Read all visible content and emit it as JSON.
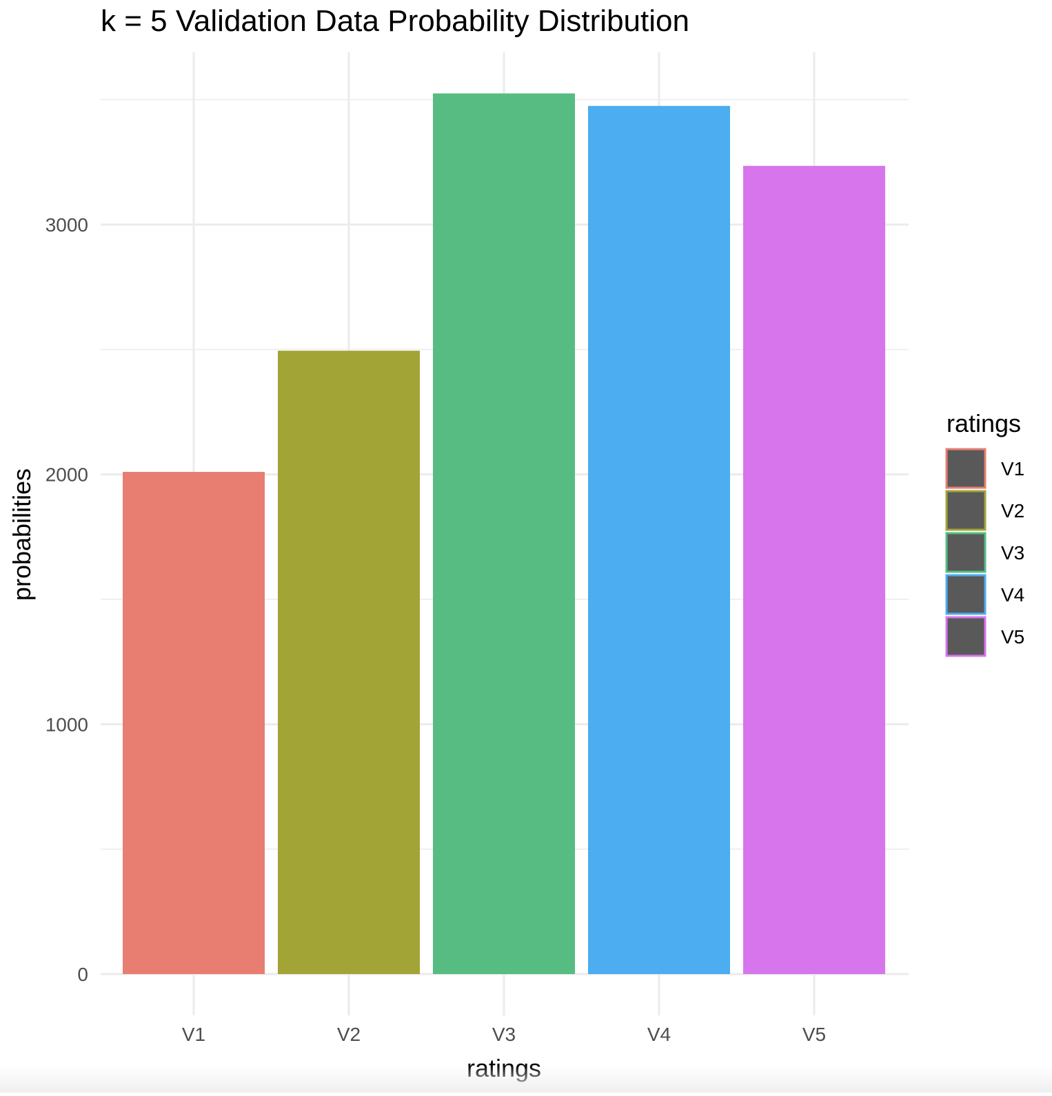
{
  "chart_data": {
    "type": "bar",
    "title": "k =  5 Validation Data Probability Distribution",
    "xlabel": "ratings",
    "ylabel": "probabilities",
    "categories": [
      "V1",
      "V2",
      "V3",
      "V4",
      "V5"
    ],
    "values": [
      2010,
      2495,
      3525,
      3475,
      3235
    ],
    "ylim": [
      0,
      3500
    ],
    "yticks": [
      0,
      1000,
      2000,
      3000
    ],
    "yticklabels": [
      "0",
      "1000",
      "2000",
      "3000"
    ],
    "grid": true,
    "colors": [
      "#e87d72",
      "#a3a436",
      "#56bc82",
      "#4cadf0",
      "#d775ec"
    ],
    "legend": {
      "title": "ratings",
      "position": "right",
      "entries": [
        "V1",
        "V2",
        "V3",
        "V4",
        "V5"
      ],
      "key_fill": "#595959"
    }
  }
}
